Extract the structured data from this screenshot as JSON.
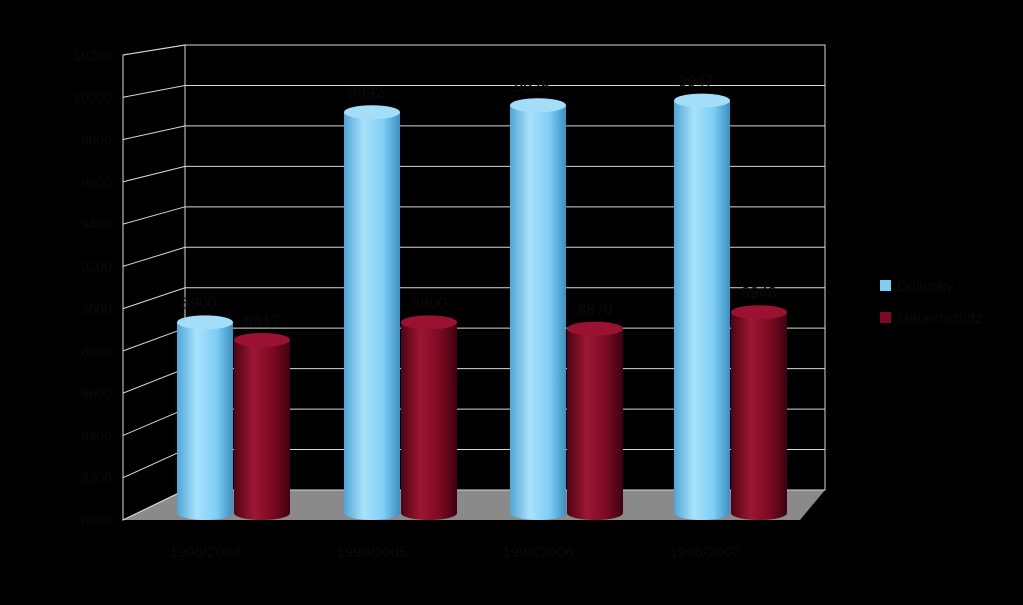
{
  "chart_data": {
    "type": "bar",
    "title": "",
    "xlabel": "",
    "ylabel": "",
    "ylim": [
      8000,
      10200
    ],
    "yticks": [
      "8000",
      "8200",
      "8400",
      "8600",
      "8800",
      "9000",
      "9200",
      "9400",
      "9600",
      "9800",
      "10000",
      "10200"
    ],
    "categories": [
      "1998/2004",
      "1998/2005",
      "1998/2006",
      "1998/2007"
    ],
    "series": [
      {
        "name": "Dolinsky",
        "color": "#7FCFF5",
        "values": [
          8900,
          9892,
          9925,
          9947
        ],
        "labels": [
          "8900",
          "9892",
          "9925",
          "9947"
        ]
      },
      {
        "name": "Mauerschütz",
        "color": "#7B0A22",
        "values": [
          8817,
          8900,
          8870,
          8948
        ],
        "labels": [
          "8817",
          "8900",
          "8870",
          "8948"
        ]
      }
    ],
    "grid": true,
    "legend": "right",
    "style": "3d-cylinder"
  }
}
